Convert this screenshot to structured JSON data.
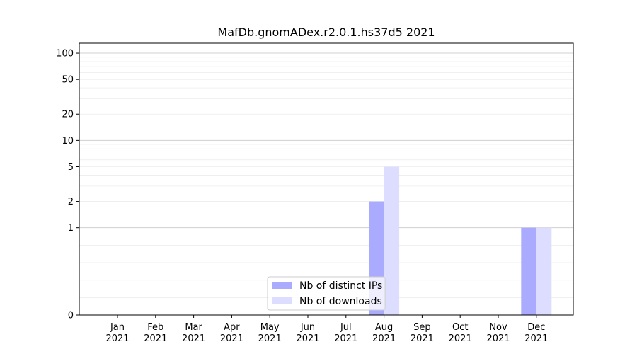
{
  "chart_data": {
    "type": "bar",
    "title": "MafDb.gnomADex.r2.0.1.hs37d5 2021",
    "xlabel": "",
    "ylabel": "",
    "y_scale": "symlog",
    "ylim": [
      0,
      130
    ],
    "y_ticks": [
      0,
      1,
      2,
      5,
      10,
      20,
      50,
      100
    ],
    "y_tick_labels": [
      "0",
      "1",
      "2",
      "5",
      "10",
      "20",
      "50",
      "100"
    ],
    "categories": [
      [
        "Jan",
        "2021"
      ],
      [
        "Feb",
        "2021"
      ],
      [
        "Mar",
        "2021"
      ],
      [
        "Apr",
        "2021"
      ],
      [
        "May",
        "2021"
      ],
      [
        "Jun",
        "2021"
      ],
      [
        "Jul",
        "2021"
      ],
      [
        "Aug",
        "2021"
      ],
      [
        "Sep",
        "2021"
      ],
      [
        "Oct",
        "2021"
      ],
      [
        "Nov",
        "2021"
      ],
      [
        "Dec",
        "2021"
      ]
    ],
    "series": [
      {
        "name": "Nb of distinct IPs",
        "color": "#aaaaff",
        "values": [
          0,
          0,
          0,
          0,
          0,
          0,
          0,
          2,
          0,
          0,
          0,
          1
        ]
      },
      {
        "name": "Nb of downloads",
        "color": "#ddddff",
        "values": [
          0,
          0,
          0,
          0,
          0,
          0,
          0,
          5,
          0,
          0,
          0,
          1
        ]
      }
    ],
    "grid": true,
    "legend_position": "lower-center"
  }
}
